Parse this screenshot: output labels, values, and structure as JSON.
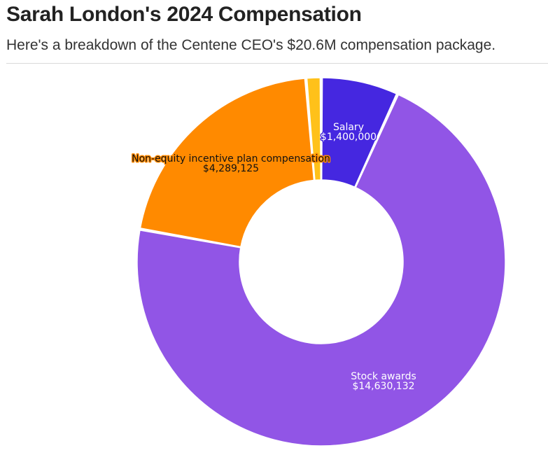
{
  "title": "Sarah London's 2024 Compensation",
  "subtitle": "Here's a breakdown of the Centene CEO's $20.6M compensation package.",
  "chart_data": {
    "type": "pie",
    "donut": true,
    "slices": [
      {
        "label": "Salary",
        "value": 1400000,
        "value_label": "$1,400,000",
        "color": "#4527e0",
        "label_color": "#ffffff",
        "halo_color": "#4527e0"
      },
      {
        "label": "Stock awards",
        "value": 14630132,
        "value_label": "$14,630,132",
        "color": "#9155e6",
        "label_color": "#ffffff",
        "halo_color": "#9155e6"
      },
      {
        "label": "Non-equity incentive plan compensation",
        "value": 4289125,
        "value_label": "$4,289,125",
        "color": "#ff8a00",
        "label_color": "#111111",
        "halo_color": "#ff8a00"
      },
      {
        "label": "",
        "value": 275000,
        "value_label": "",
        "color": "#ffc11a",
        "label_color": "#111111",
        "halo_color": "#ffc11a"
      }
    ]
  }
}
